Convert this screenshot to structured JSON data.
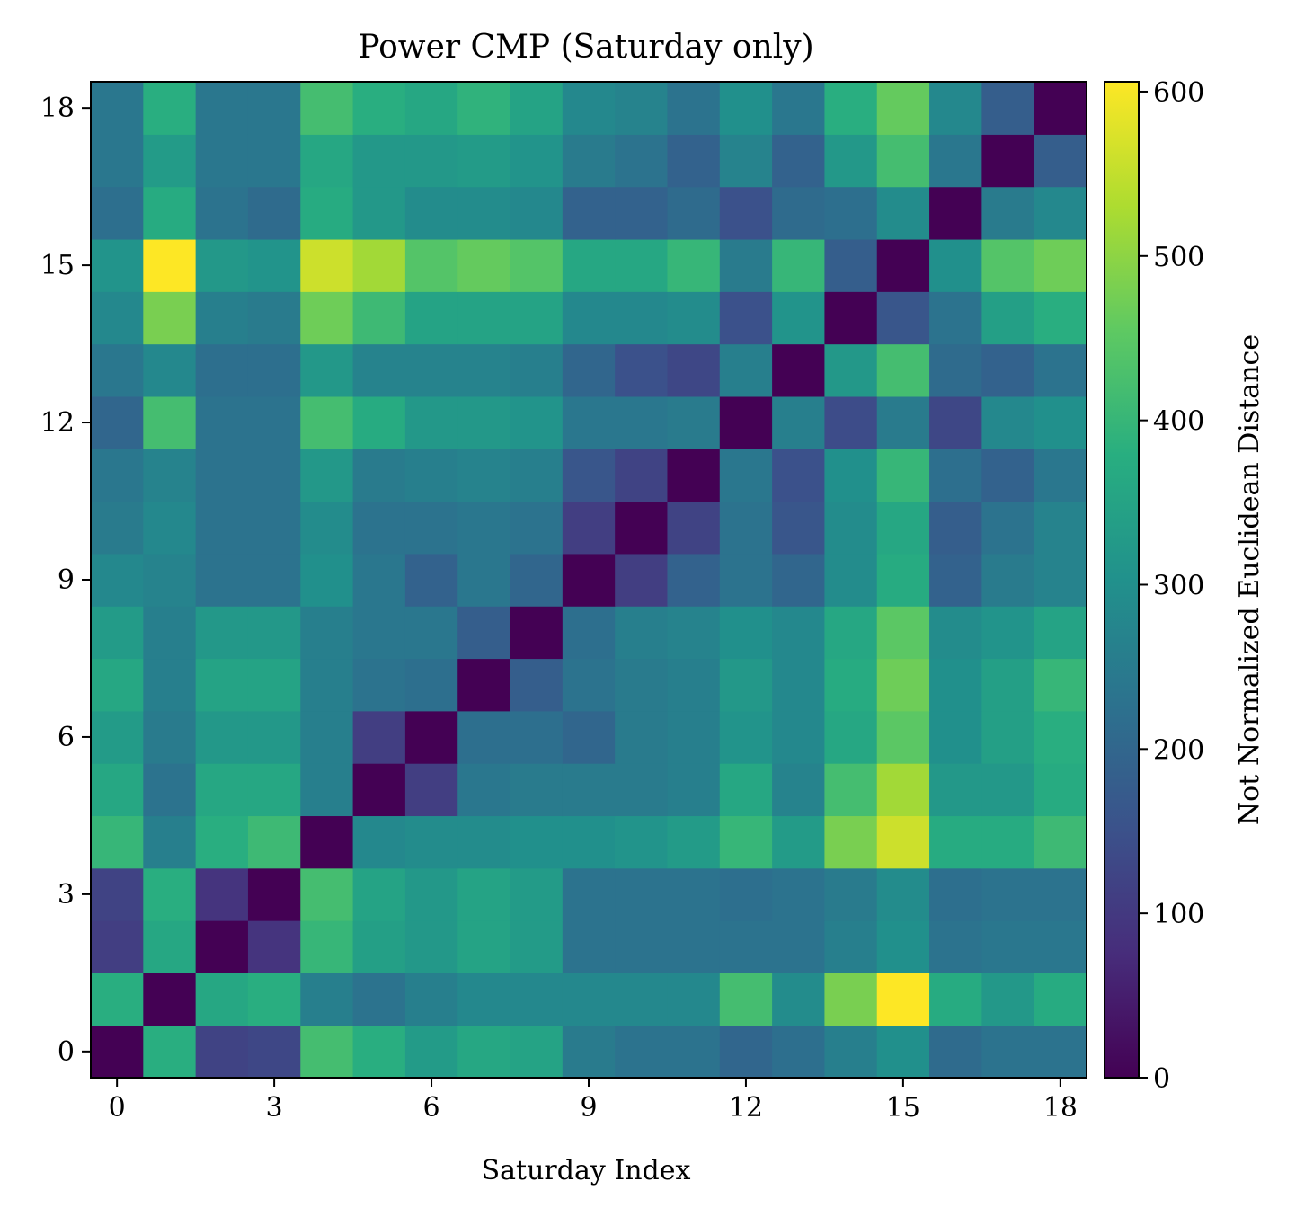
{
  "chart_data": {
    "type": "heatmap",
    "title": "Power CMP (Saturday only)",
    "xlabel": "Saturday Index",
    "ylabel": "",
    "colorbar_label": "Not Normalized Euclidean Distance",
    "colormap": "viridis",
    "vmin": 0,
    "vmax": 606,
    "x_ticks": [
      "0",
      "3",
      "6",
      "9",
      "12",
      "15",
      "18"
    ],
    "y_ticks": [
      "0",
      "3",
      "6",
      "9",
      "12",
      "15",
      "18"
    ],
    "colorbar_ticks": [
      "0",
      "100",
      "200",
      "300",
      "400",
      "500",
      "600"
    ],
    "n": 19,
    "matrix": [
      [
        0,
        380,
        120,
        130,
        420,
        380,
        330,
        360,
        350,
        250,
        230,
        230,
        200,
        220,
        260,
        300,
        210,
        230,
        230
      ],
      [
        380,
        0,
        360,
        380,
        260,
        230,
        260,
        280,
        280,
        280,
        280,
        280,
        420,
        290,
        480,
        606,
        370,
        320,
        370
      ],
      [
        110,
        360,
        0,
        90,
        400,
        340,
        320,
        350,
        330,
        230,
        230,
        230,
        230,
        230,
        260,
        300,
        230,
        240,
        240
      ],
      [
        120,
        380,
        90,
        0,
        420,
        350,
        320,
        350,
        330,
        230,
        230,
        230,
        220,
        230,
        250,
        290,
        220,
        230,
        230
      ],
      [
        400,
        260,
        380,
        410,
        0,
        280,
        290,
        290,
        300,
        300,
        310,
        330,
        400,
        330,
        480,
        560,
        370,
        370,
        410
      ],
      [
        360,
        230,
        360,
        360,
        260,
        0,
        110,
        240,
        250,
        250,
        250,
        260,
        360,
        270,
        420,
        520,
        320,
        320,
        370
      ],
      [
        330,
        250,
        320,
        320,
        260,
        110,
        0,
        220,
        220,
        200,
        250,
        260,
        310,
        280,
        360,
        450,
        300,
        340,
        380
      ],
      [
        360,
        260,
        350,
        350,
        260,
        230,
        220,
        0,
        180,
        230,
        250,
        260,
        320,
        280,
        370,
        470,
        300,
        340,
        400
      ],
      [
        330,
        260,
        320,
        320,
        260,
        240,
        240,
        180,
        0,
        220,
        260,
        270,
        300,
        280,
        360,
        450,
        290,
        310,
        350
      ],
      [
        280,
        270,
        230,
        230,
        300,
        240,
        190,
        240,
        200,
        0,
        110,
        190,
        230,
        200,
        290,
        370,
        190,
        250,
        270
      ],
      [
        250,
        280,
        230,
        230,
        290,
        230,
        230,
        240,
        230,
        110,
        0,
        120,
        230,
        160,
        290,
        360,
        180,
        230,
        270
      ],
      [
        240,
        270,
        230,
        230,
        320,
        250,
        260,
        270,
        260,
        160,
        120,
        0,
        240,
        150,
        300,
        400,
        220,
        190,
        240
      ],
      [
        200,
        420,
        230,
        230,
        420,
        370,
        320,
        320,
        310,
        240,
        240,
        250,
        0,
        260,
        140,
        250,
        130,
        280,
        300
      ],
      [
        240,
        280,
        220,
        220,
        320,
        270,
        270,
        270,
        260,
        200,
        150,
        130,
        260,
        0,
        320,
        420,
        210,
        190,
        230
      ],
      [
        280,
        480,
        260,
        250,
        470,
        410,
        350,
        350,
        350,
        280,
        280,
        290,
        150,
        310,
        0,
        160,
        230,
        340,
        380
      ],
      [
        310,
        606,
        320,
        310,
        560,
        520,
        440,
        460,
        440,
        360,
        360,
        400,
        250,
        400,
        180,
        0,
        300,
        440,
        470
      ],
      [
        220,
        370,
        230,
        210,
        370,
        320,
        290,
        290,
        280,
        190,
        190,
        210,
        150,
        210,
        220,
        290,
        0,
        250,
        280
      ],
      [
        240,
        330,
        240,
        240,
        360,
        320,
        320,
        330,
        310,
        250,
        230,
        190,
        270,
        190,
        320,
        420,
        240,
        0,
        180
      ],
      [
        240,
        380,
        240,
        240,
        420,
        380,
        360,
        390,
        350,
        280,
        270,
        230,
        300,
        240,
        380,
        460,
        280,
        180,
        0
      ]
    ]
  }
}
